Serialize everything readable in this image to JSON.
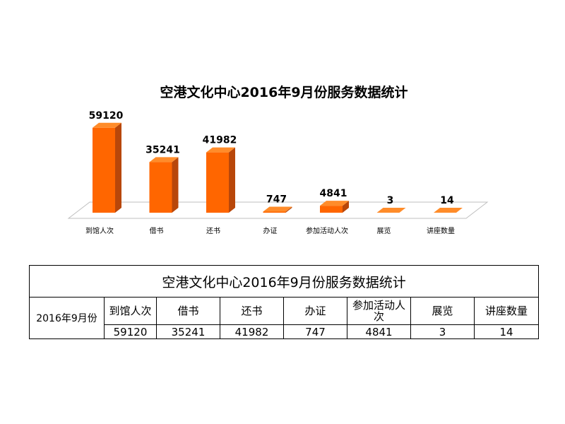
{
  "chart_data": {
    "type": "bar",
    "title": "空港文化中心2016年9月份服务数据统计",
    "categories": [
      "到馆人次",
      "借书",
      "还书",
      "办证",
      "参加活动人次",
      "展览",
      "讲座数量"
    ],
    "series": [
      {
        "values": [
          59120,
          35241,
          41982,
          747,
          4841,
          3,
          14
        ]
      }
    ],
    "data_labels": [
      "59120",
      "35241",
      "41982",
      "747",
      "4841",
      "3",
      "14"
    ],
    "ylim": [
      0,
      60000
    ],
    "grid": false,
    "legend": "none",
    "colors": {
      "bar_front": "#ff6600",
      "bar_side": "#b8470a",
      "bar_top": "#ff8c2a",
      "floor": "#ffffff",
      "floor_edge": "#bfbfbf"
    }
  },
  "table": {
    "title": "空港文化中心2016年9月份服务数据统计",
    "row_header": "2016年9月份",
    "columns": [
      "到馆人次",
      "借书",
      "还书",
      "办证",
      "参加活动人次",
      "展览",
      "讲座数量"
    ],
    "values": [
      "59120",
      "35241",
      "41982",
      "747",
      "4841",
      "3",
      "14"
    ]
  }
}
